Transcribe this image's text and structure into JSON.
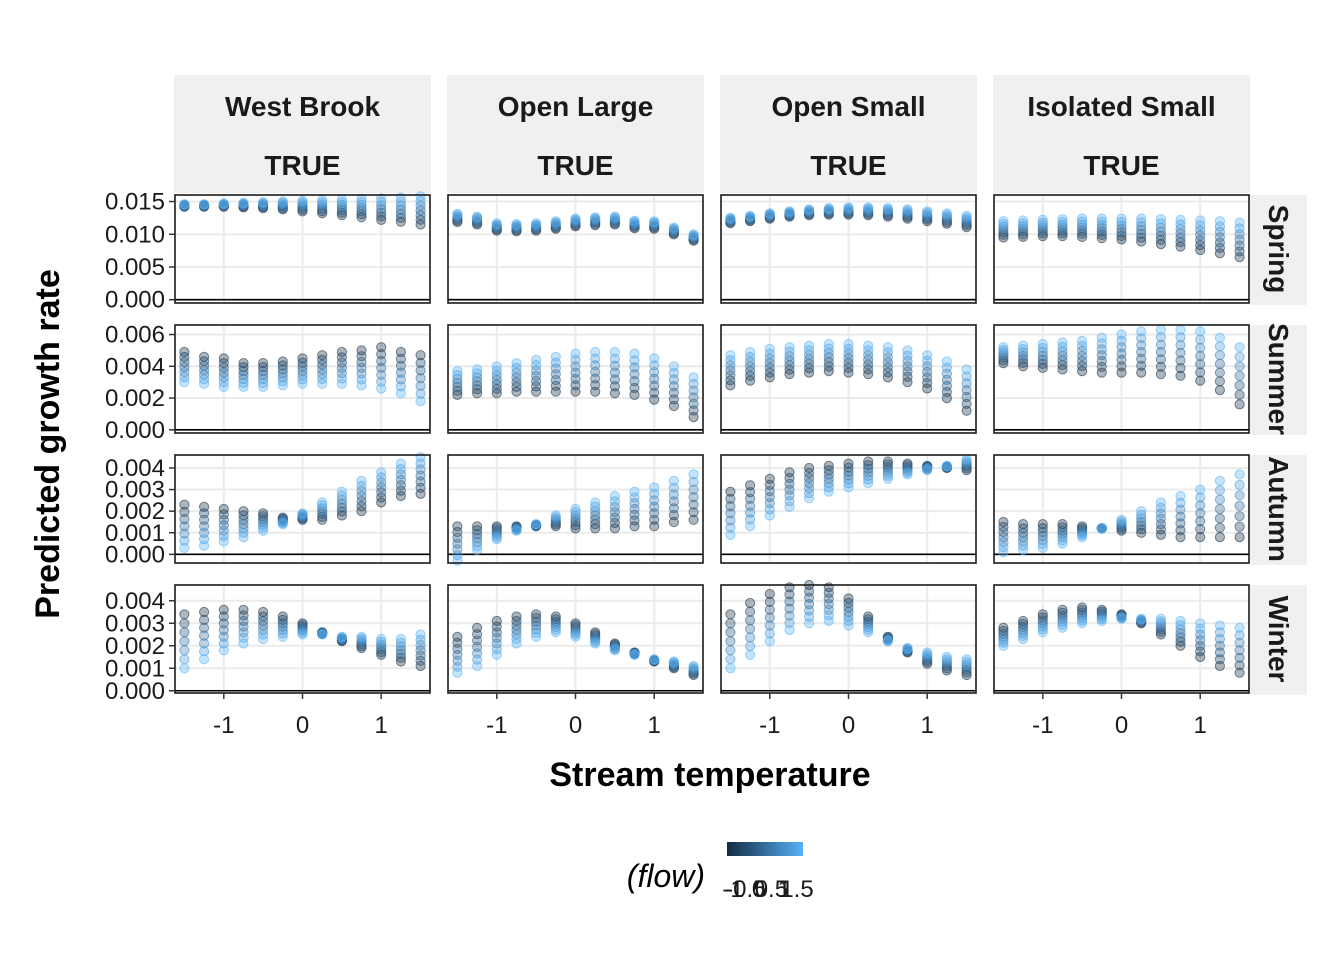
{
  "chart_data": {
    "type": "scatter",
    "xlabel": "Stream temperature",
    "ylabel": "Predicted growth rate",
    "facet_columns": [
      "West Brook",
      "Open Large",
      "Open Small",
      "Isolated Small"
    ],
    "facet_column_sublabel": "TRUE",
    "facet_rows": [
      "Spring",
      "Summer",
      "Autumn",
      "Winter"
    ],
    "x_ticks": [
      "-1",
      "0",
      "1"
    ],
    "x_tick_values": [
      -1,
      0,
      1
    ],
    "xlim": [
      -1.62,
      1.62
    ],
    "x_values": [
      -1.5,
      -1.25,
      -1.0,
      -0.75,
      -0.5,
      -0.25,
      0.0,
      0.25,
      0.5,
      0.75,
      1.0,
      1.25,
      1.5
    ],
    "rows": [
      {
        "name": "Spring",
        "ylim": [
          -0.0005,
          0.016
        ],
        "ticks": [
          "0.000",
          "0.005",
          "0.010",
          "0.015"
        ],
        "tick_values": [
          0,
          0.005,
          0.01,
          0.015
        ]
      },
      {
        "name": "Summer",
        "ylim": [
          -0.0002,
          0.0066
        ],
        "ticks": [
          "0.000",
          "0.002",
          "0.004",
          "0.006"
        ],
        "tick_values": [
          0,
          0.002,
          0.004,
          0.006
        ]
      },
      {
        "name": "Autumn",
        "ylim": [
          -0.0004,
          0.0046
        ],
        "ticks": [
          "0.000",
          "0.001",
          "0.002",
          "0.003",
          "0.004"
        ],
        "tick_values": [
          0,
          0.001,
          0.002,
          0.003,
          0.004
        ]
      },
      {
        "name": "Winter",
        "ylim": [
          -0.0001,
          0.0047
        ],
        "ticks": [
          "0.000",
          "0.001",
          "0.002",
          "0.003",
          "0.004"
        ],
        "tick_values": [
          0,
          0.001,
          0.002,
          0.003,
          0.004
        ]
      }
    ],
    "panels": [
      [
        {
          "low_flow": [
            0.0142,
            0.0142,
            0.0142,
            0.0141,
            0.014,
            0.0138,
            0.0135,
            0.0132,
            0.0129,
            0.0126,
            0.0122,
            0.0119,
            0.0115
          ],
          "high_flow": [
            0.0146,
            0.0146,
            0.0147,
            0.0148,
            0.0149,
            0.015,
            0.0151,
            0.0152,
            0.0153,
            0.0154,
            0.0155,
            0.0156,
            0.0158
          ]
        },
        {
          "low_flow": [
            0.0125,
            0.0121,
            0.0111,
            0.011,
            0.0111,
            0.0114,
            0.0118,
            0.012,
            0.0121,
            0.0115,
            0.0114,
            0.0105,
            0.0095
          ]
        },
        {
          "low_flow": [
            0.0117,
            0.012,
            0.0124,
            0.0127,
            0.0129,
            0.013,
            0.013,
            0.0129,
            0.0127,
            0.0124,
            0.012,
            0.0116,
            0.0111
          ],
          "high_flow": [
            0.0125,
            0.0128,
            0.0132,
            0.0135,
            0.0138,
            0.014,
            0.0141,
            0.0141,
            0.014,
            0.0138,
            0.0135,
            0.0132,
            0.0128
          ]
        },
        {
          "low_flow": [
            0.0095,
            0.0096,
            0.0097,
            0.0097,
            0.0096,
            0.0094,
            0.0092,
            0.0089,
            0.0085,
            0.0081,
            0.0076,
            0.0071,
            0.0065
          ],
          "high_flow": [
            0.012,
            0.0121,
            0.0122,
            0.0123,
            0.0124,
            0.0124,
            0.0124,
            0.0124,
            0.0123,
            0.0122,
            0.0121,
            0.012,
            0.0118
          ]
        }
      ],
      [
        {
          "low_flow": [
            0.0049,
            0.0046,
            0.0045,
            0.0042,
            0.0042,
            0.0043,
            0.0045,
            0.0047,
            0.0049,
            0.005,
            0.0052,
            0.0049,
            0.0047
          ],
          "high_flow": [
            0.003,
            0.0029,
            0.0027,
            0.0027,
            0.0027,
            0.0028,
            0.0029,
            0.0029,
            0.0029,
            0.0028,
            0.0026,
            0.0023,
            0.0018
          ]
        },
        {
          "low_flow": [
            0.0022,
            0.0023,
            0.0023,
            0.0024,
            0.0024,
            0.0024,
            0.0024,
            0.0024,
            0.0023,
            0.0022,
            0.0019,
            0.0015,
            0.0008
          ],
          "high_flow": [
            0.0037,
            0.0038,
            0.004,
            0.0042,
            0.0044,
            0.0046,
            0.0048,
            0.0049,
            0.0049,
            0.0048,
            0.0045,
            0.004,
            0.0033
          ]
        },
        {
          "low_flow": [
            0.0028,
            0.0031,
            0.0033,
            0.0035,
            0.0036,
            0.0037,
            0.0036,
            0.0035,
            0.0033,
            0.003,
            0.0026,
            0.002,
            0.0012
          ],
          "high_flow": [
            0.0047,
            0.0049,
            0.0051,
            0.0052,
            0.0053,
            0.0054,
            0.0054,
            0.0053,
            0.0052,
            0.005,
            0.0047,
            0.0043,
            0.0038
          ]
        },
        {
          "low_flow": [
            0.0042,
            0.004,
            0.0039,
            0.0038,
            0.0037,
            0.0036,
            0.0036,
            0.0036,
            0.0035,
            0.0034,
            0.0031,
            0.0025,
            0.0016
          ],
          "high_flow": [
            0.0052,
            0.0053,
            0.0054,
            0.0055,
            0.0056,
            0.0058,
            0.006,
            0.0062,
            0.0063,
            0.0063,
            0.0062,
            0.0058,
            0.0052
          ]
        }
      ],
      [
        {
          "low_flow": [
            0.0023,
            0.0022,
            0.0021,
            0.002,
            0.0019,
            0.0017,
            0.0016,
            0.0016,
            0.0018,
            0.002,
            0.0024,
            0.0027,
            0.0028
          ],
          "high_flow": [
            0.0003,
            0.0004,
            0.0006,
            0.0008,
            0.0011,
            0.0014,
            0.0019,
            0.0024,
            0.0029,
            0.0034,
            0.0038,
            0.0042,
            0.0045
          ]
        },
        {
          "low_flow": [
            0.0013,
            0.0013,
            0.0013,
            0.0013,
            0.0013,
            0.0013,
            0.0012,
            0.0012,
            0.0012,
            0.0013,
            0.0013,
            0.0015,
            0.0016
          ],
          "high_flow": [
            -0.0003,
            0.0002,
            0.0007,
            0.0011,
            0.0014,
            0.0018,
            0.0021,
            0.0024,
            0.0027,
            0.0029,
            0.0031,
            0.0034,
            0.0037
          ]
        },
        {
          "low_flow": [
            0.0029,
            0.0032,
            0.0035,
            0.0038,
            0.004,
            0.0041,
            0.0042,
            0.0043,
            0.0043,
            0.0042,
            0.0041,
            0.004,
            0.0039
          ],
          "high_flow": [
            0.0009,
            0.0013,
            0.0018,
            0.0022,
            0.0026,
            0.0029,
            0.0031,
            0.0033,
            0.0035,
            0.0037,
            0.0039,
            0.0041,
            0.0044
          ]
        },
        {
          "low_flow": [
            0.0015,
            0.0014,
            0.0014,
            0.0014,
            0.0013,
            0.0012,
            0.0011,
            0.001,
            0.0009,
            0.0008,
            0.0008,
            0.0008,
            0.0008
          ],
          "high_flow": [
            0.0001,
            0.0002,
            0.0003,
            0.0005,
            0.0008,
            0.0012,
            0.0016,
            0.002,
            0.0024,
            0.0027,
            0.003,
            0.0034,
            0.0037
          ]
        }
      ],
      [
        {
          "low_flow": [
            0.0034,
            0.0035,
            0.0036,
            0.0036,
            0.0035,
            0.0033,
            0.003,
            0.0026,
            0.0022,
            0.0019,
            0.0016,
            0.0013,
            0.0011
          ],
          "high_flow": [
            0.001,
            0.0014,
            0.0018,
            0.0021,
            0.0023,
            0.0024,
            0.0025,
            0.0025,
            0.0024,
            0.0024,
            0.0023,
            0.0023,
            0.0025
          ]
        },
        {
          "low_flow": [
            0.0024,
            0.0028,
            0.0031,
            0.0033,
            0.0034,
            0.0033,
            0.003,
            0.0026,
            0.0021,
            0.0017,
            0.0013,
            0.001,
            0.0007
          ],
          "high_flow": [
            0.0008,
            0.0011,
            0.0016,
            0.0021,
            0.0024,
            0.0026,
            0.0024,
            0.0021,
            0.0018,
            0.0016,
            0.0014,
            0.0013,
            0.0011
          ]
        },
        {
          "low_flow": [
            0.0034,
            0.0039,
            0.0043,
            0.0046,
            0.0047,
            0.0046,
            0.0041,
            0.0033,
            0.0024,
            0.0017,
            0.0012,
            0.0009,
            0.0007
          ],
          "high_flow": [
            0.001,
            0.0016,
            0.0022,
            0.0027,
            0.003,
            0.0031,
            0.0029,
            0.0026,
            0.0022,
            0.0019,
            0.0017,
            0.0015,
            0.0014
          ]
        },
        {
          "low_flow": [
            0.0028,
            0.0031,
            0.0034,
            0.0036,
            0.0037,
            0.0036,
            0.0034,
            0.003,
            0.0025,
            0.002,
            0.0015,
            0.0011,
            0.0008
          ],
          "high_flow": [
            0.002,
            0.0023,
            0.0026,
            0.0028,
            0.003,
            0.0031,
            0.0032,
            0.0032,
            0.0032,
            0.0031,
            0.003,
            0.0029,
            0.0028
          ]
        }
      ]
    ],
    "n_flow_levels": 7,
    "legend": {
      "title": "(flow)",
      "labels": [
        "-1",
        "-0.5",
        "0",
        "0.5",
        "1",
        "1.5"
      ],
      "position": "bottom",
      "gradient_low": "#132b43",
      "gradient_high": "#56b1f7"
    },
    "grid": true,
    "colors": {
      "strip_background": "#f0f0f0",
      "panel_background": "#ffffff",
      "grid": "#ebebeb",
      "point_low_flow": "#132b43",
      "point_high_flow": "#56b1f7"
    }
  }
}
